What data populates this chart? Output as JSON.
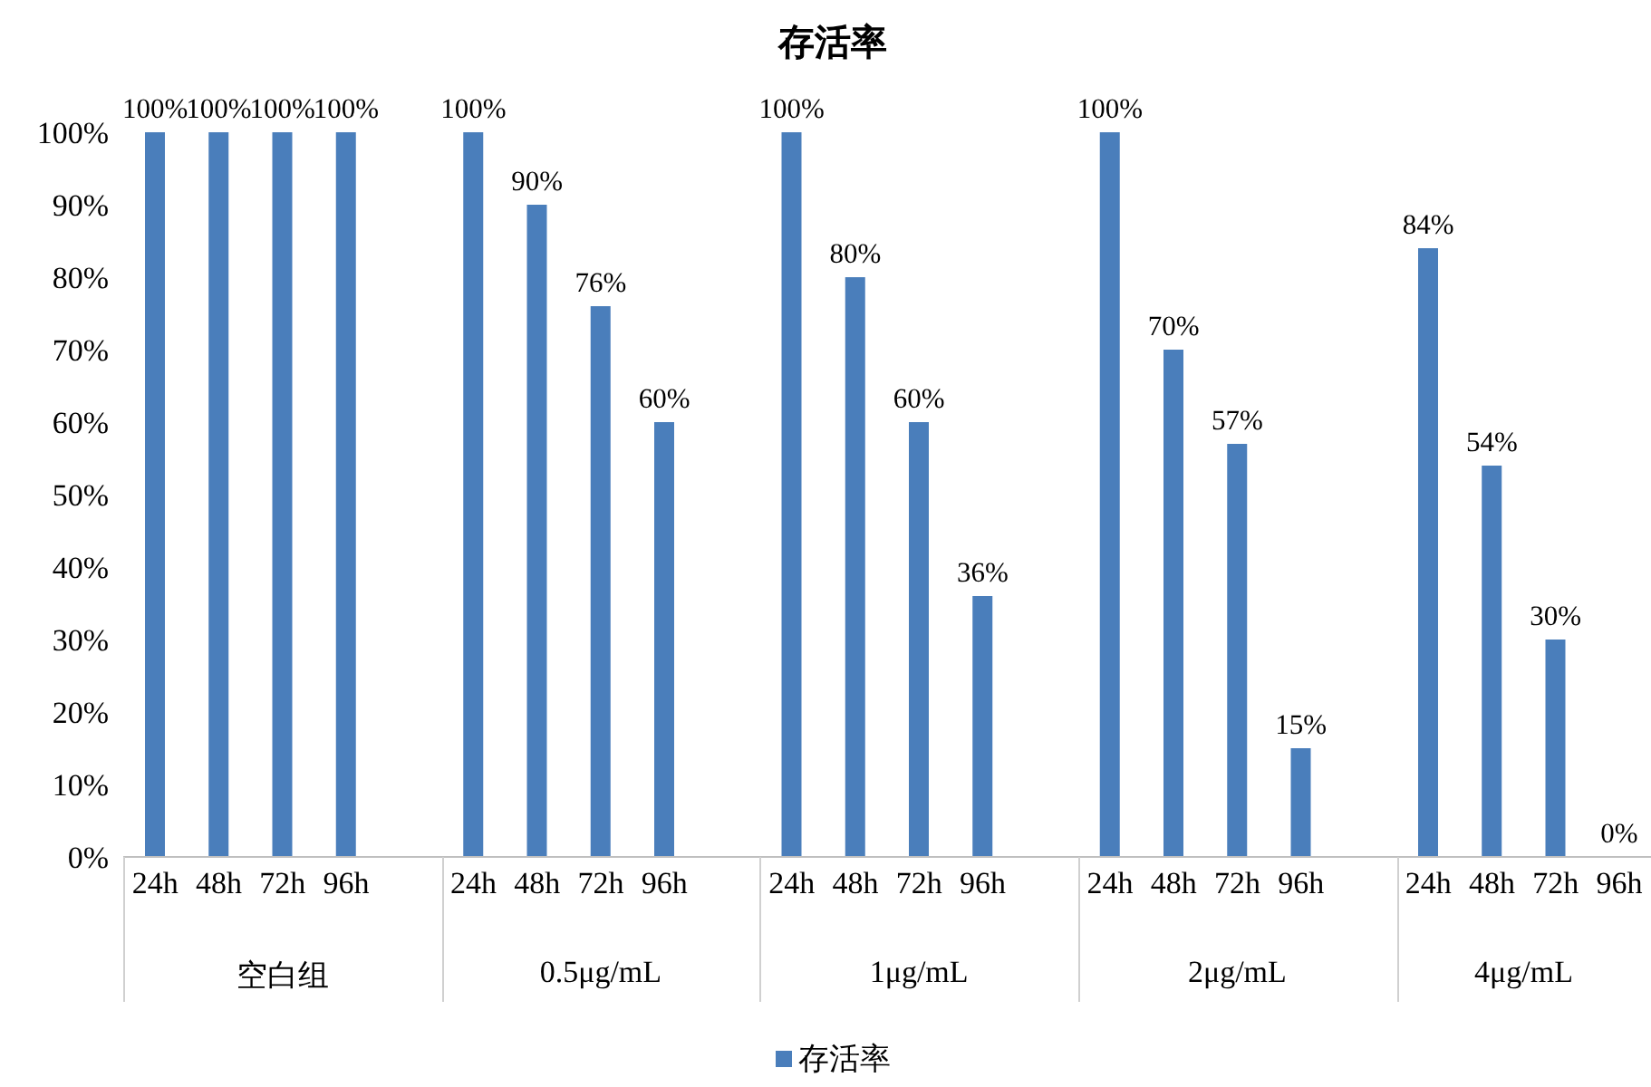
{
  "chart_data": {
    "type": "bar",
    "title": "存活率",
    "categories": [
      "24h",
      "48h",
      "72h",
      "96h",
      null,
      "24h",
      "48h",
      "72h",
      "96h",
      null,
      "24h",
      "48h",
      "72h",
      "96h",
      null,
      "24h",
      "48h",
      "72h",
      "96h",
      null,
      "24h",
      "48h",
      "72h",
      "96h"
    ],
    "series": [
      {
        "name": "存活率",
        "color": "#4a7ebb",
        "values": [
          100,
          100,
          100,
          100,
          null,
          100,
          90,
          76,
          60,
          null,
          100,
          80,
          60,
          36,
          null,
          100,
          70,
          57,
          15,
          null,
          84,
          54,
          30,
          0
        ],
        "value_labels": [
          "100%",
          "100%",
          "100%",
          "100%",
          null,
          "100%",
          "90%",
          "76%",
          "60%",
          null,
          "100%",
          "80%",
          "60%",
          "36%",
          null,
          "100%",
          "70%",
          "57%",
          "15%",
          null,
          "84%",
          "54%",
          "30%",
          "0%"
        ]
      }
    ],
    "annotations": [
      "空白组",
      "0.5μg/mL",
      "1μg/mL",
      "2μg/mL",
      "4μg/mL"
    ],
    "ylim": [
      0,
      100
    ],
    "yticks": [
      {
        "value": 0,
        "label": "0%"
      },
      {
        "value": 10,
        "label": "10%"
      },
      {
        "value": 20,
        "label": "20%"
      },
      {
        "value": 30,
        "label": "30%"
      },
      {
        "value": 40,
        "label": "40%"
      },
      {
        "value": 50,
        "label": "50%"
      },
      {
        "value": 60,
        "label": "60%"
      },
      {
        "value": 70,
        "label": "70%"
      },
      {
        "value": 80,
        "label": "80%"
      },
      {
        "value": 90,
        "label": "90%"
      },
      {
        "value": 100,
        "label": "100%"
      }
    ],
    "grid": false,
    "legend": "bottom"
  }
}
